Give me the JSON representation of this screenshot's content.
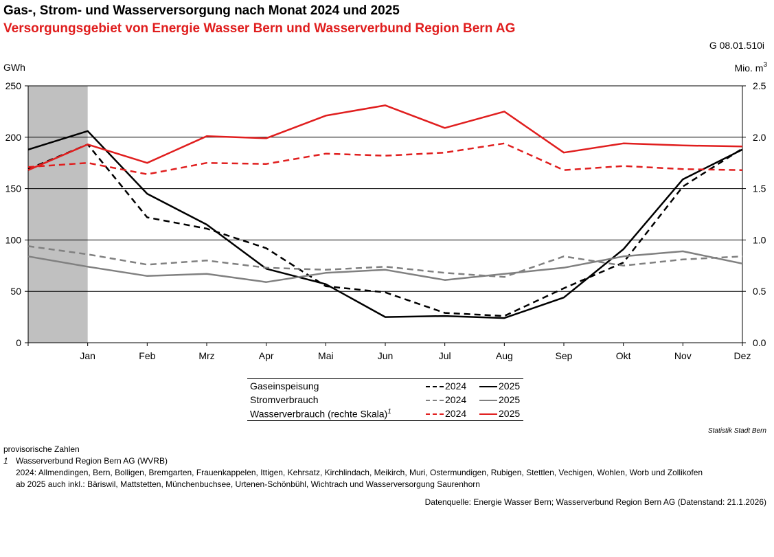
{
  "title": "Gas-, Strom- und Wasserversorgung nach Monat 2024 und 2025",
  "subtitle": "Versorgungsgebiet von Energie Wasser Bern und Wasserverbund Region Bern AG",
  "figure_code": "G 08.01.510i",
  "credit": "Statistik Stadt Bern",
  "colors": {
    "gas": "#000000",
    "strom": "#808080",
    "wasser": "#e01e1e",
    "highlight": "#c0c0c0",
    "grid": "#000000"
  },
  "legend": {
    "rows": [
      {
        "label": "Gaseinspeisung",
        "series_2024": "2024",
        "series_2025": "2025",
        "color_key": "gas"
      },
      {
        "label": "Stromverbrauch",
        "series_2024": "2024",
        "series_2025": "2025",
        "color_key": "strom"
      },
      {
        "label": "Wasserverbrauch (rechte Skala)",
        "footnote_mark": "1",
        "series_2024": "2024",
        "series_2025": "2025",
        "color_key": "wasser"
      }
    ]
  },
  "notes": {
    "provisional": "provisorische Zahlen",
    "footnote_mark": "1",
    "footnote_title": "Wasserverbund Region Bern AG (WVRB)",
    "line_2024": "2024: Allmendingen, Bern, Bolligen, Bremgarten, Frauenkappelen, Ittigen, Kehrsatz, Kirchlindach, Meikirch, Muri, Ostermundigen, Rubigen, Stettlen, Vechigen, Wohlen, Worb und Zollikofen",
    "line_2025": "ab 2025 auch inkl.: Bäriswil, Mattstetten, Münchenbuchsee, Urtenen-Schönbühl, Wichtrach und Wasserversorgung Saurenhorn"
  },
  "source": "Datenquelle: Energie Wasser Bern; Wasserverbund Region Bern AG (Datenstand: 21.1.2026)",
  "chart_data": {
    "type": "line",
    "categories": [
      "",
      "Jan",
      "Feb",
      "Mrz",
      "Apr",
      "Mai",
      "Jun",
      "Jul",
      "Aug",
      "Sep",
      "Okt",
      "Nov",
      "Dez"
    ],
    "ylabel_left": "GWh",
    "ylabel_right_base": "Mio. m",
    "ylabel_right_sup": "3",
    "ylim_left": [
      0,
      250
    ],
    "ylim_right": [
      0,
      2.5
    ],
    "yticks_left": [
      "0",
      "50",
      "100",
      "150",
      "200",
      "250"
    ],
    "yticks_right": [
      "0.0",
      "0.5",
      "1.0",
      "1.5",
      "2.0",
      "2.5"
    ],
    "grid": true,
    "shaded_interval": [
      0,
      1
    ],
    "series": [
      {
        "key": "gas_2024",
        "color_key": "gas",
        "dashed": true,
        "axis": "left",
        "values": [
          169,
          193,
          122,
          111,
          92,
          55,
          49,
          29,
          26,
          53,
          78,
          152,
          189
        ]
      },
      {
        "key": "gas_2025",
        "color_key": "gas",
        "dashed": false,
        "axis": "left",
        "values": [
          188,
          206,
          145,
          115,
          72,
          57,
          25,
          26,
          24,
          44,
          91,
          159,
          188
        ]
      },
      {
        "key": "strom_2024",
        "color_key": "strom",
        "dashed": true,
        "axis": "left",
        "values": [
          94,
          86,
          76,
          80,
          73,
          71,
          74,
          68,
          64,
          84,
          75,
          81,
          84
        ]
      },
      {
        "key": "strom_2025",
        "color_key": "strom",
        "dashed": false,
        "axis": "left",
        "values": [
          84,
          74,
          65,
          67,
          59,
          68,
          71,
          61,
          67,
          73,
          84,
          89,
          77
        ]
      },
      {
        "key": "wasser_2024",
        "color_key": "wasser",
        "dashed": true,
        "axis": "right",
        "values": [
          1.71,
          1.75,
          1.64,
          1.75,
          1.74,
          1.84,
          1.82,
          1.85,
          1.94,
          1.68,
          1.72,
          1.69,
          1.68
        ]
      },
      {
        "key": "wasser_2025",
        "color_key": "wasser",
        "dashed": false,
        "axis": "right",
        "values": [
          1.68,
          1.93,
          1.75,
          2.01,
          1.99,
          2.21,
          2.31,
          2.09,
          2.25,
          1.85,
          1.94,
          1.92,
          1.91
        ]
      }
    ]
  }
}
